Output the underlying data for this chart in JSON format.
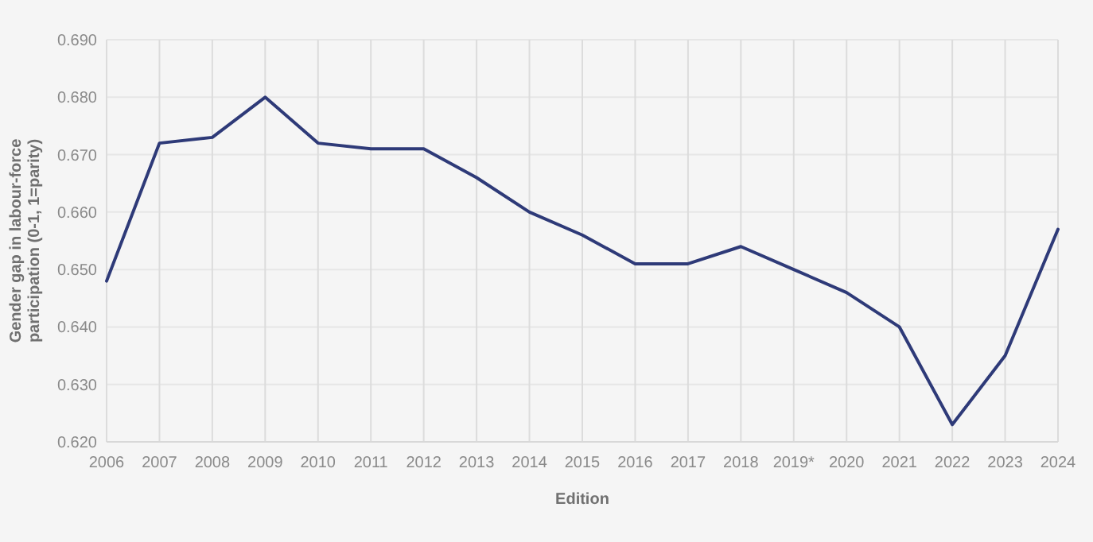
{
  "chart_data": {
    "type": "line",
    "xlabel": "Edition",
    "ylabel": "Gender gap in labour-force participation (0-1, 1=parity)",
    "categories": [
      "2006",
      "2007",
      "2008",
      "2009",
      "2010",
      "2011",
      "2012",
      "2013",
      "2014",
      "2015",
      "2016",
      "2017",
      "2018",
      "2019*",
      "2020",
      "2021",
      "2022",
      "2023",
      "2024"
    ],
    "series": [
      {
        "color": "#2e3a78",
        "values": [
          0.648,
          0.672,
          0.673,
          0.68,
          0.672,
          0.671,
          0.671,
          0.666,
          0.66,
          0.656,
          0.651,
          0.651,
          0.654,
          0.65,
          0.646,
          0.64,
          0.623,
          0.635,
          0.657
        ]
      }
    ],
    "ylim": [
      0.62,
      0.69
    ],
    "yticks": [
      {
        "value": 0.62,
        "label": "0.620"
      },
      {
        "value": 0.63,
        "label": "0.630"
      },
      {
        "value": 0.64,
        "label": "0.640"
      },
      {
        "value": 0.65,
        "label": "0.650"
      },
      {
        "value": 0.66,
        "label": "0.660"
      },
      {
        "value": 0.67,
        "label": "0.670"
      },
      {
        "value": 0.68,
        "label": "0.680"
      },
      {
        "value": 0.69,
        "label": "0.690"
      }
    ],
    "grid": true,
    "marker": "none",
    "line_style": "solid"
  }
}
